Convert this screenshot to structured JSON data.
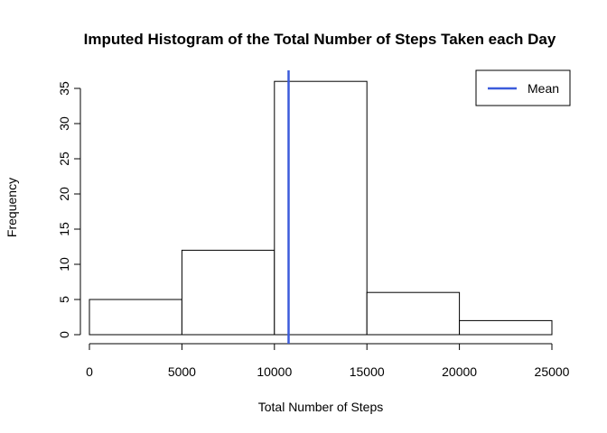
{
  "chart_data": {
    "type": "bar",
    "title": "Imputed Histogram of the Total Number of Steps Taken each Day",
    "xlabel": "Total Number of Steps",
    "ylabel": "Frequency",
    "bins": [
      {
        "start": 0,
        "end": 5000,
        "value": 5
      },
      {
        "start": 5000,
        "end": 10000,
        "value": 12
      },
      {
        "start": 10000,
        "end": 15000,
        "value": 36
      },
      {
        "start": 15000,
        "end": 20000,
        "value": 6
      },
      {
        "start": 20000,
        "end": 25000,
        "value": 2
      }
    ],
    "xlim": [
      0,
      25000
    ],
    "ylim": [
      0,
      35
    ],
    "xticks": [
      0,
      5000,
      10000,
      15000,
      20000,
      25000
    ],
    "yticks": [
      0,
      5,
      10,
      15,
      20,
      25,
      30,
      35
    ],
    "mean_line": {
      "value": 10766,
      "color": "#3b5bdb",
      "label": "Mean"
    },
    "bar_fill": "#ffffff",
    "bar_stroke": "#000000",
    "grid": false,
    "legend_position": "top-right"
  }
}
